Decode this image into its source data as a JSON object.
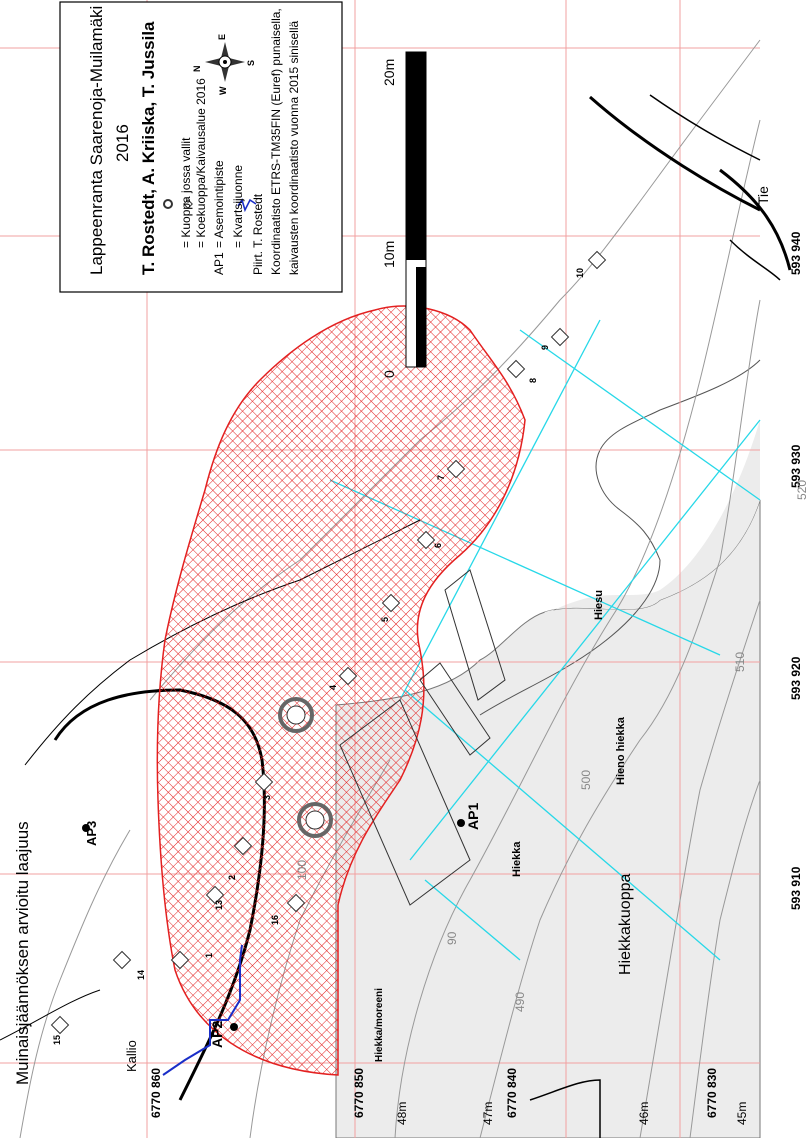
{
  "map": {
    "title": "Muinaisjäännöksen arvioitu laajuus",
    "legend": {
      "heading": "Lappeenranta Saarenoja-Muilamäki",
      "year": "2016",
      "authors": "T. Rostedt, A. Kriiska, T. Jussila",
      "items": [
        "= Kuoppa jossa vallit",
        "= Koekuoppa/Kaivausalue 2016",
        "= Asemointipiste",
        "= Kvartsijuonne"
      ],
      "ap_symbol": "AP1",
      "drawn_by": "Piirt. T. Rostedt",
      "coord_note_1": "Koordinaatisto ETRS-TM35FIN (Euref) punaisella,",
      "coord_note_2": "kaivausten koordinaatisto vuonna 2015 sinisellä",
      "compass": {
        "n": "N",
        "e": "E",
        "s": "S",
        "w": "W"
      }
    },
    "scale": {
      "label_0": "0",
      "label_10": "10m",
      "label_20": "20m"
    },
    "coords_x": [
      "6770 860",
      "6770 850",
      "6770 840",
      "6770 830"
    ],
    "coords_y": [
      "593 910",
      "593 920",
      "593 930",
      "593 940"
    ],
    "elevations": [
      "48m",
      "47m",
      "46m",
      "45m"
    ],
    "contour_values": [
      "100",
      "90",
      "500",
      "490",
      "510",
      "520"
    ],
    "places": {
      "kallio": "Kallio",
      "hiekka_moreeni": "Hiekka/moreeni",
      "hiekkakuoppa": "Hiekkakuoppa",
      "hiekka": "Hiekka",
      "hieno_hiekka": "Hieno hiekka",
      "hiesu": "Hiesu",
      "tie": "Tie"
    },
    "points": {
      "ap1": "AP1",
      "ap2": "AP2",
      "ap3": "AP3"
    },
    "pits": [
      "1",
      "2",
      "3",
      "4",
      "5",
      "6",
      "7",
      "8",
      "9",
      "10",
      "13",
      "14",
      "15",
      "16"
    ]
  }
}
